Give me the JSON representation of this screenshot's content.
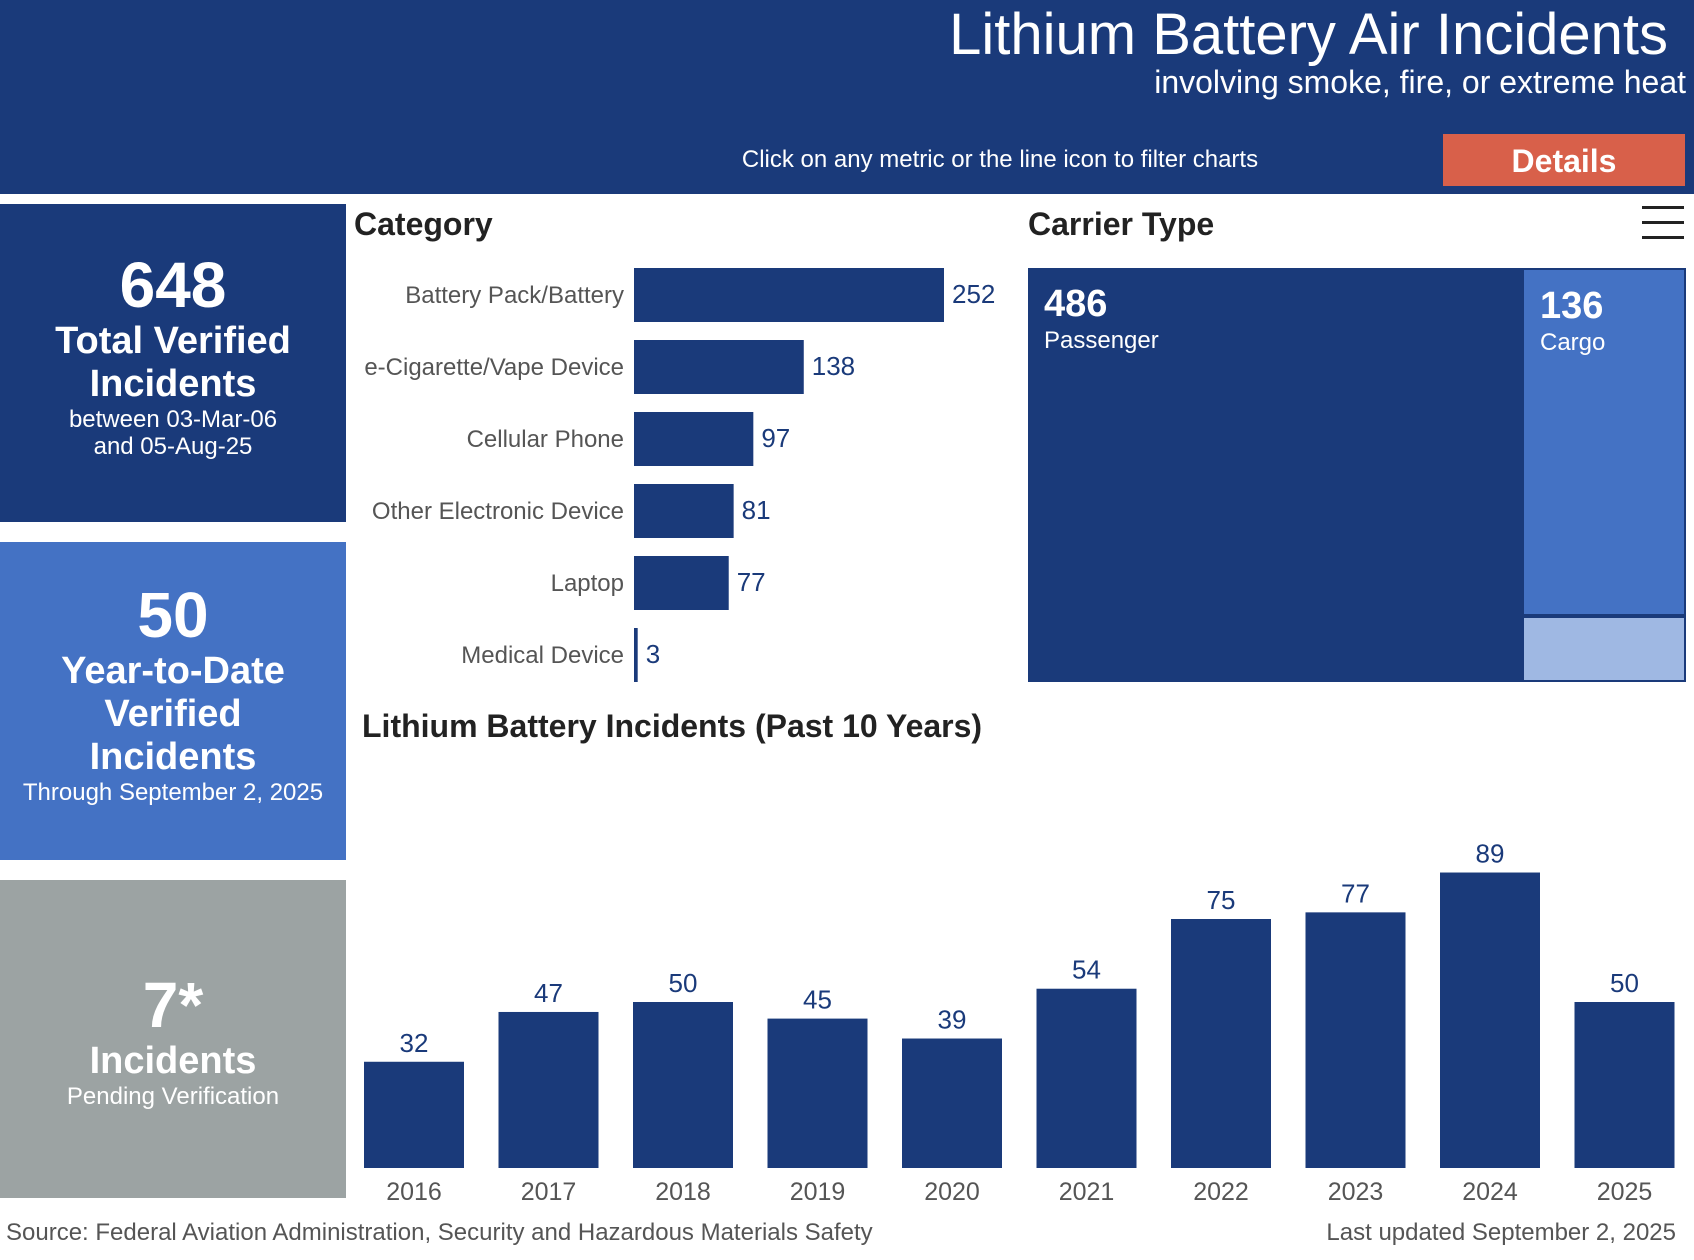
{
  "header": {
    "title": "Lithium Battery Air Incidents",
    "subtitle": "involving smoke, fire, or extreme heat",
    "hint": "Click on any metric or the line icon to filter charts",
    "details_label": "Details"
  },
  "colors": {
    "navy": "#1a3a7a",
    "medium_blue": "#4472c4",
    "light_blue": "#9fb8e3",
    "gray": "#9ca3a3",
    "details_button": "#d8604a"
  },
  "cards": {
    "total": {
      "value": "648",
      "label": "Total Verified Incidents",
      "sub1": "between 03-Mar-06",
      "sub2": "and 05-Aug-25"
    },
    "ytd": {
      "value": "50",
      "label": "Year-to-Date Verified Incidents",
      "sub": "Through September 2, 2025"
    },
    "pending": {
      "value": "7*",
      "label": "Incidents",
      "sub": "Pending Verification"
    }
  },
  "sections": {
    "category": "Category",
    "carrier": "Carrier Type",
    "trend": "Lithium Battery Incidents (Past 10 Years)"
  },
  "footer": {
    "source": "Source: Federal Aviation Administration, Security and Hazardous Materials Safety",
    "updated": "Last updated September 2, 2025"
  },
  "chart_data": [
    {
      "type": "bar",
      "orientation": "horizontal",
      "title": "Category",
      "categories": [
        "Battery Pack/Battery",
        "e-Cigarette/Vape Device",
        "Cellular Phone",
        "Other Electronic Device",
        "Laptop",
        "Medical Device"
      ],
      "values": [
        252,
        138,
        97,
        81,
        77,
        3
      ]
    },
    {
      "type": "treemap",
      "title": "Carrier Type",
      "categories": [
        "Passenger",
        "Cargo"
      ],
      "values": [
        486,
        136
      ]
    },
    {
      "type": "bar",
      "title": "Lithium Battery Incidents (Past 10 Years)",
      "categories": [
        "2016",
        "2017",
        "2018",
        "2019",
        "2020",
        "2021",
        "2022",
        "2023",
        "2024",
        "2025"
      ],
      "values": [
        32,
        47,
        50,
        45,
        39,
        54,
        75,
        77,
        89,
        50
      ]
    }
  ]
}
